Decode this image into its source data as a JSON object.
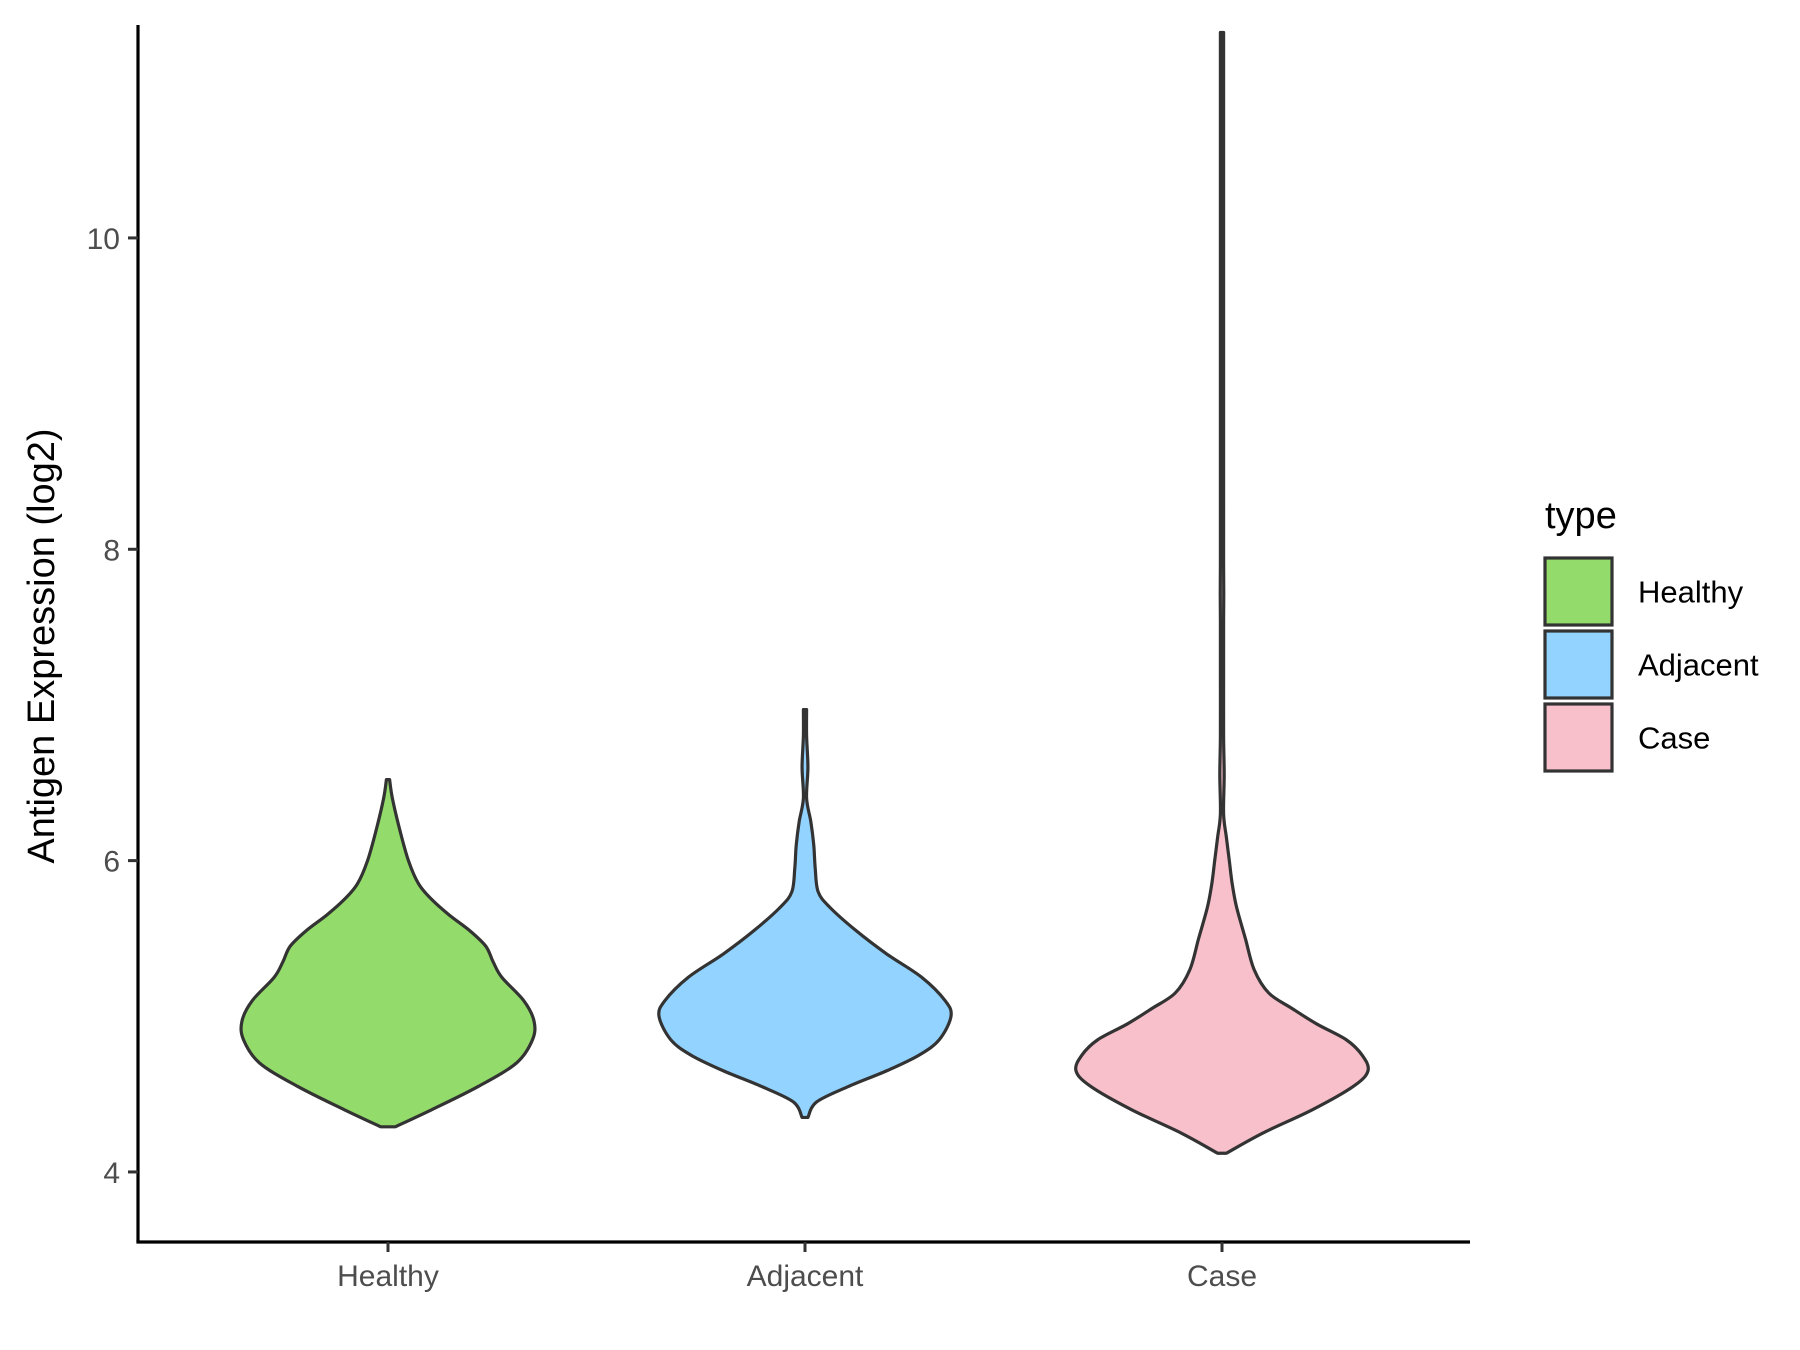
{
  "chart_data": {
    "type": "violin",
    "title": "",
    "xlabel": "",
    "ylabel": "Antigen Expression (log2)",
    "ylim": [
      3.55,
      11.4
    ],
    "yticks": [
      4,
      6,
      8,
      10
    ],
    "ytick_labels": [
      "4",
      "6",
      "8",
      "10"
    ],
    "categories": [
      "Healthy",
      "Adjacent",
      "Case"
    ],
    "grid": false,
    "legend": {
      "title": "type",
      "position": "right",
      "entries": [
        "Healthy",
        "Adjacent",
        "Case"
      ]
    },
    "series": [
      {
        "name": "Healthy",
        "color": "#93DB6A",
        "min": 4.29,
        "max": 6.52,
        "profile": [
          [
            4.29,
            0.05
          ],
          [
            4.4,
            0.3
          ],
          [
            4.55,
            0.62
          ],
          [
            4.7,
            0.88
          ],
          [
            4.85,
            0.99
          ],
          [
            4.97,
            1.0
          ],
          [
            5.1,
            0.93
          ],
          [
            5.25,
            0.78
          ],
          [
            5.35,
            0.72
          ],
          [
            5.45,
            0.67
          ],
          [
            5.55,
            0.56
          ],
          [
            5.65,
            0.42
          ],
          [
            5.75,
            0.3
          ],
          [
            5.85,
            0.21
          ],
          [
            6.0,
            0.14
          ],
          [
            6.2,
            0.08
          ],
          [
            6.4,
            0.03
          ],
          [
            6.52,
            0.0
          ]
        ]
      },
      {
        "name": "Adjacent",
        "color": "#93D3FF",
        "min": 4.35,
        "max": 6.97,
        "profile": [
          [
            4.35,
            0.02
          ],
          [
            4.45,
            0.08
          ],
          [
            4.55,
            0.3
          ],
          [
            4.65,
            0.56
          ],
          [
            4.75,
            0.78
          ],
          [
            4.85,
            0.92
          ],
          [
            5.0,
            1.0
          ],
          [
            5.1,
            0.96
          ],
          [
            5.25,
            0.8
          ],
          [
            5.4,
            0.56
          ],
          [
            5.55,
            0.35
          ],
          [
            5.7,
            0.17
          ],
          [
            5.8,
            0.09
          ],
          [
            5.95,
            0.07
          ],
          [
            6.1,
            0.06
          ],
          [
            6.25,
            0.04
          ],
          [
            6.4,
            0.01
          ],
          [
            6.6,
            0.02
          ],
          [
            6.8,
            0.01
          ],
          [
            6.97,
            0.0
          ]
        ]
      },
      {
        "name": "Case",
        "color": "#F7C0CB",
        "min": 4.12,
        "max": 11.32,
        "profile": [
          [
            4.12,
            0.03
          ],
          [
            4.25,
            0.28
          ],
          [
            4.4,
            0.62
          ],
          [
            4.55,
            0.9
          ],
          [
            4.65,
            1.0
          ],
          [
            4.75,
            0.96
          ],
          [
            4.85,
            0.85
          ],
          [
            4.95,
            0.65
          ],
          [
            5.05,
            0.48
          ],
          [
            5.15,
            0.32
          ],
          [
            5.3,
            0.22
          ],
          [
            5.5,
            0.16
          ],
          [
            5.7,
            0.1
          ],
          [
            5.85,
            0.07
          ],
          [
            6.0,
            0.05
          ],
          [
            6.15,
            0.03
          ],
          [
            6.3,
            0.01
          ],
          [
            6.55,
            0.015
          ],
          [
            6.8,
            0.006
          ],
          [
            7.2,
            0.004
          ],
          [
            7.55,
            0.006
          ],
          [
            7.72,
            0.012
          ],
          [
            7.9,
            0.006
          ],
          [
            8.5,
            0.004
          ],
          [
            10.0,
            0.004
          ],
          [
            11.1,
            0.006
          ],
          [
            11.32,
            0.0
          ]
        ]
      }
    ]
  }
}
